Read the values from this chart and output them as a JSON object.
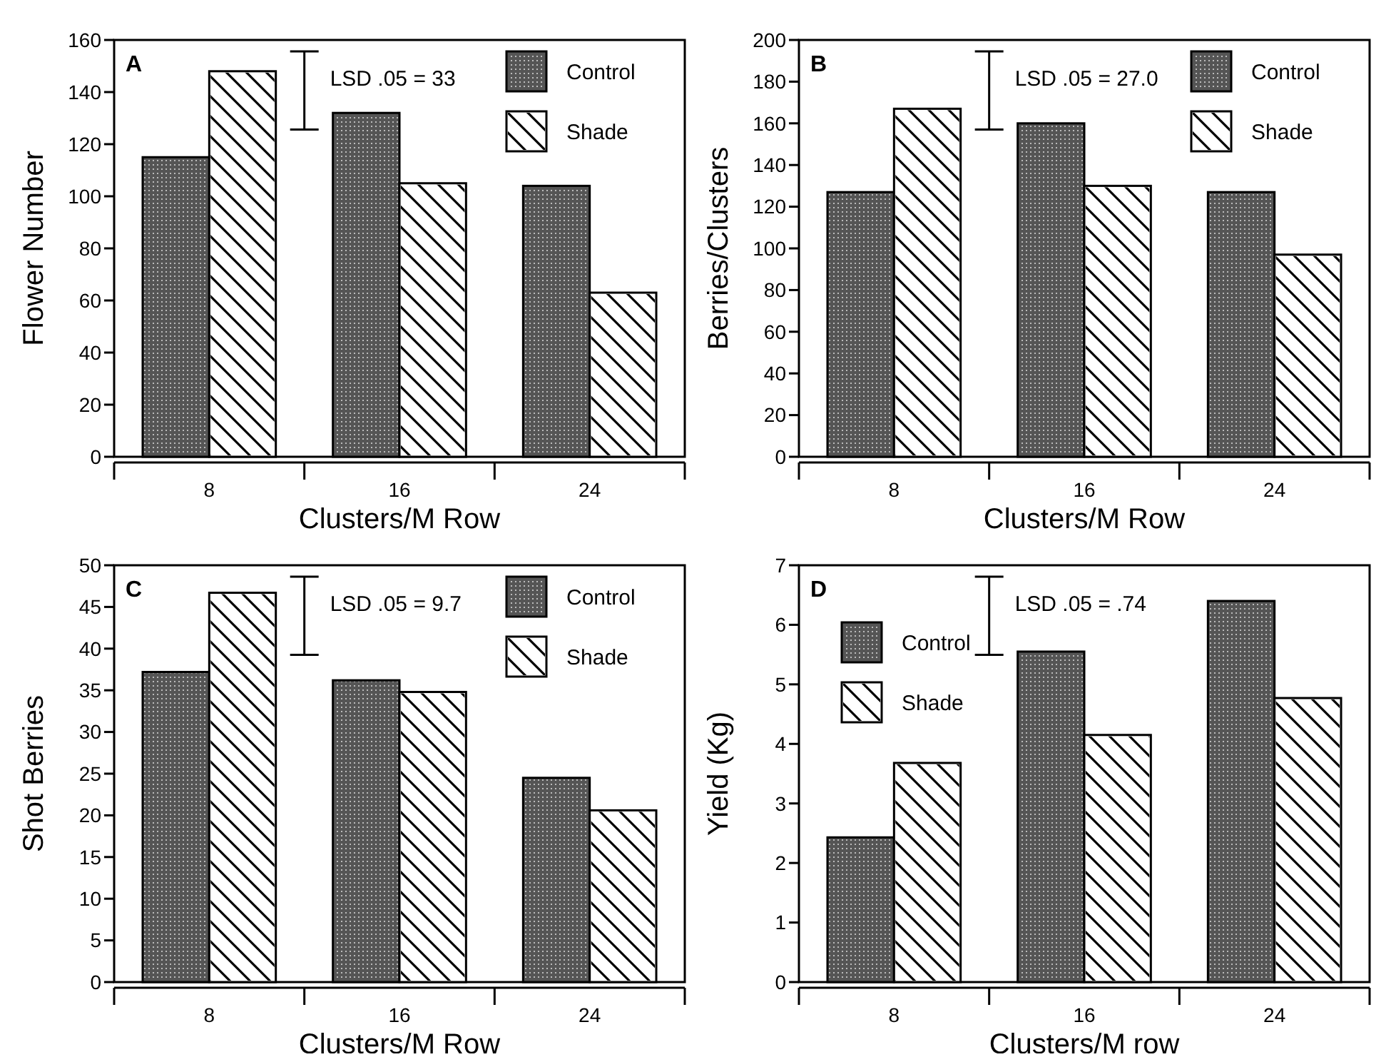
{
  "chart_data": [
    {
      "type": "bar",
      "xlabel": "Clusters/M Row",
      "ylabel": "Flower Number",
      "categories": [
        "8",
        "16",
        "24"
      ],
      "series": [
        {
          "name": "Control",
          "color": "#555555",
          "values": [
            115,
            132,
            104
          ]
        },
        {
          "name": "Shade",
          "color": "#ffffff",
          "values": [
            148,
            105,
            63
          ]
        }
      ],
      "ylim": [
        0,
        160
      ],
      "yticks": [
        0,
        20,
        40,
        60,
        80,
        100,
        120,
        140,
        160
      ],
      "legend": "top right",
      "annotations": [
        "A",
        "LSD .05 = 33"
      ]
    },
    {
      "type": "bar",
      "xlabel": "Clusters/M Row",
      "ylabel": "Berries/Clusters",
      "categories": [
        "8",
        "16",
        "24"
      ],
      "series": [
        {
          "name": "Control",
          "color": "#555555",
          "values": [
            127,
            160,
            127
          ]
        },
        {
          "name": "Shade",
          "color": "#ffffff",
          "values": [
            167,
            130,
            97
          ]
        }
      ],
      "ylim": [
        0,
        200
      ],
      "yticks": [
        0,
        20,
        40,
        60,
        80,
        100,
        120,
        140,
        160,
        180,
        200
      ],
      "legend": "top right",
      "annotations": [
        "B",
        "LSD .05 = 27.0"
      ]
    },
    {
      "type": "bar",
      "xlabel": "Clusters/M Row",
      "ylabel": "Shot Berries",
      "categories": [
        "8",
        "16",
        "24"
      ],
      "series": [
        {
          "name": "Control",
          "color": "#555555",
          "values": [
            37.2,
            36.2,
            24.5
          ]
        },
        {
          "name": "Shade",
          "color": "#ffffff",
          "values": [
            46.7,
            34.8,
            20.6
          ]
        }
      ],
      "ylim": [
        0,
        50
      ],
      "yticks": [
        0,
        5,
        10,
        15,
        20,
        25,
        30,
        35,
        40,
        45,
        50
      ],
      "legend": "top right",
      "annotations": [
        "C",
        "LSD .05 = 9.7"
      ]
    },
    {
      "type": "bar",
      "xlabel": "Clusters/M row",
      "ylabel": "Yield (Kg)",
      "categories": [
        "8",
        "16",
        "24"
      ],
      "series": [
        {
          "name": "Control",
          "color": "#555555",
          "values": [
            2.43,
            5.55,
            6.4
          ]
        },
        {
          "name": "Shade",
          "color": "#ffffff",
          "values": [
            3.68,
            4.15,
            4.77
          ]
        }
      ],
      "ylim": [
        0,
        7
      ],
      "yticks": [
        0,
        1,
        2,
        3,
        4,
        5,
        6,
        7
      ],
      "legend": "top left",
      "annotations": [
        "D",
        "LSD .05 = .74"
      ]
    }
  ]
}
